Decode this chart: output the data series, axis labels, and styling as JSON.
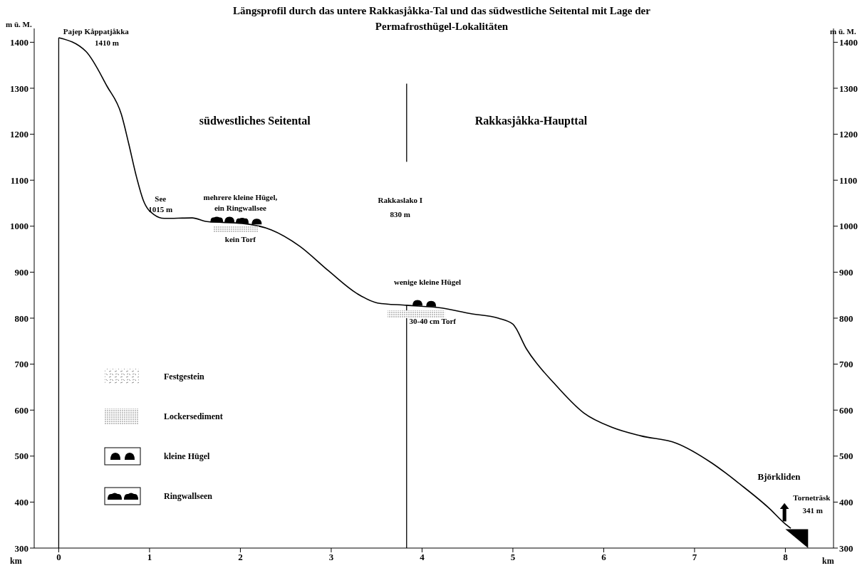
{
  "chart_data": {
    "type": "line",
    "title": "Längsprofil durch das untere Rakkasjåkka-Tal und das südwestliche Seitental mit Lage der Permafrosthügel-Lokalitäten",
    "xlabel": "km",
    "ylabel": "m ü. M.",
    "y2label": "m ü. M.",
    "xlim": [
      -0.27,
      8.53
    ],
    "xticks": [
      0,
      1,
      2,
      3,
      4,
      5,
      6,
      7,
      8
    ],
    "ylim": [
      300,
      1430
    ],
    "yticks": [
      300,
      400,
      500,
      600,
      700,
      800,
      900,
      1000,
      1100,
      1200,
      1300,
      1400
    ],
    "y2lim": [
      300,
      1430
    ],
    "y2ticks": [
      300,
      400,
      500,
      600,
      700,
      800,
      900,
      1000,
      1100,
      1200,
      1300,
      1400
    ],
    "x": [
      0,
      0.3,
      0.53,
      0.69,
      0.77,
      0.85,
      0.93,
      1.05,
      1.16,
      1.47,
      1.63,
      2.02,
      2.34,
      2.65,
      2.97,
      3.28,
      3.51,
      3.83,
      4.22,
      4.53,
      4.84,
      5.0,
      5.15,
      5.47,
      5.78,
      6.1,
      6.41,
      6.8,
      7.19,
      7.5,
      7.83,
      7.99,
      8.06
    ],
    "series": [
      {
        "color": "#000000",
        "values": [
          1410,
          1380,
          1305,
          1243,
          1180,
          1112,
          1057,
          1025,
          1017,
          1018,
          1010,
          1006,
          992,
          957,
          903,
          854,
          833,
          828,
          822,
          810,
          800,
          787,
          733,
          655,
          594,
          562,
          544,
          528,
          485,
          439,
          385,
          354,
          343
        ]
      }
    ],
    "ref_lines": [
      {
        "axis": "x",
        "value": 0,
        "color": "#000000"
      },
      {
        "axis": "x",
        "value": 3.83,
        "color": "#000000"
      }
    ],
    "annotations": [
      "Pajep Kåppatjåkka",
      "1410 m",
      "See",
      "1015 m",
      "mehrere kleine Hügel,",
      "ein Ringwallsee",
      "kein Torf",
      "südwestliches Seitental",
      "Rakkasjåkka-Haupttal",
      "Rakkaslako I",
      "830 m",
      "wenige kleine Hügel",
      "30-40 cm Torf",
      "Björkliden",
      "Torneträsk",
      "341 m",
      "Festgestein",
      "Lockersediment",
      "kleine Hügel",
      "Ringwallseen"
    ]
  }
}
